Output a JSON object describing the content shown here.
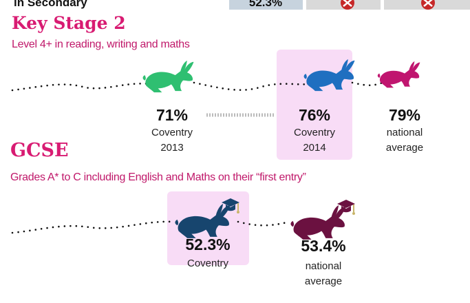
{
  "header": {
    "label": "in Secondary",
    "value": "52.3%"
  },
  "key_stage_2": {
    "title": "Key Stage 2",
    "subtitle": "Level 4+ in reading, writing and maths",
    "items": [
      {
        "value": "71%",
        "label": [
          "Coventry",
          "2013"
        ]
      },
      {
        "value": "76%",
        "label": [
          "Coventry",
          "2014"
        ]
      },
      {
        "value": "79%",
        "label": [
          "national",
          "average"
        ]
      }
    ]
  },
  "gcse": {
    "title": "GCSE",
    "subtitle": "Grades A* to C including English and Maths on their “first entry”",
    "items": [
      {
        "value": "52.3%",
        "label": [
          "Coventry"
        ]
      },
      {
        "value": "53.4%",
        "label": [
          "national",
          "average"
        ]
      }
    ]
  }
}
